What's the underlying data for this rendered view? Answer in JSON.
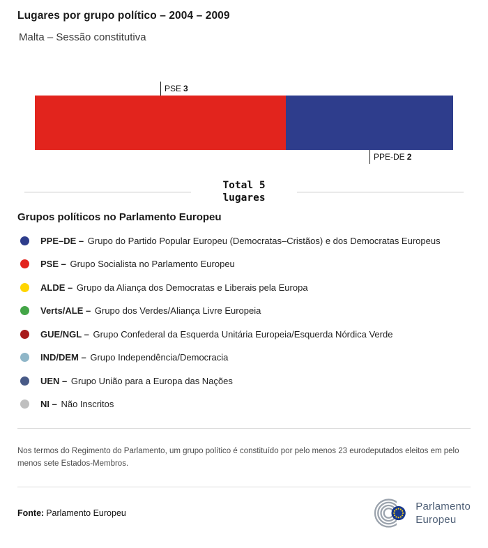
{
  "header": {
    "title": "Lugares por grupo político – 2004 – 2009",
    "subtitle": "Malta – Sessão constitutiva"
  },
  "chart_data": {
    "type": "bar",
    "variant": "stacked-horizontal",
    "title": "Lugares por grupo político – 2004 – 2009",
    "subtitle": "Malta – Sessão constitutiva",
    "total_seats": 5,
    "total_line1": "Total 5",
    "total_line2": "lugares",
    "series": [
      {
        "name": "PSE",
        "value": 3,
        "color": "#e2241d",
        "label_position": "above"
      },
      {
        "name": "PPE-DE",
        "value": 2,
        "color": "#2e3d8c",
        "label_position": "below"
      }
    ]
  },
  "legend": {
    "heading": "Grupos políticos no Parlamento Europeu",
    "items": [
      {
        "abbr": "PPE–DE –",
        "desc": "Grupo do Partido Popular Europeu (Democratas–Cristãos) e dos Democratas Europeus",
        "color": "#2e3d8c"
      },
      {
        "abbr": "PSE –",
        "desc": "Grupo Socialista no Parlamento Europeu",
        "color": "#e2241d"
      },
      {
        "abbr": "ALDE –",
        "desc": "Grupo da Aliança dos Democratas e Liberais pela Europa",
        "color": "#ffd500"
      },
      {
        "abbr": "Verts/ALE –",
        "desc": "Grupo dos Verdes/Aliança Livre Europeia",
        "color": "#43a547"
      },
      {
        "abbr": "GUE/NGL –",
        "desc": "Grupo Confederal da Esquerda Unitária Europeia/Esquerda Nórdica Verde",
        "color": "#a81c1c"
      },
      {
        "abbr": "IND/DEM –",
        "desc": "Grupo Independência/Democracia",
        "color": "#8fb6c8"
      },
      {
        "abbr": "UEN –",
        "desc": "Grupo União para a Europa das Nações",
        "color": "#485a87"
      },
      {
        "abbr": "NI –",
        "desc": "Não Inscritos",
        "color": "#bfbfbf"
      }
    ]
  },
  "footnote": "Nos termos do Regimento do Parlamento, um grupo político é constituído por pelo menos 23 eurodeputados eleitos em pelo menos sete Estados-Membros.",
  "footer": {
    "source_label": "Fonte:",
    "source_value": "Parlamento Europeu",
    "logo_line1": "Parlamento",
    "logo_line2": "Europeu"
  },
  "colors": {
    "eu_flag_blue": "#17388c",
    "eu_star_yellow": "#ffd617",
    "logo_arc_grey": "#9ba3ad"
  }
}
